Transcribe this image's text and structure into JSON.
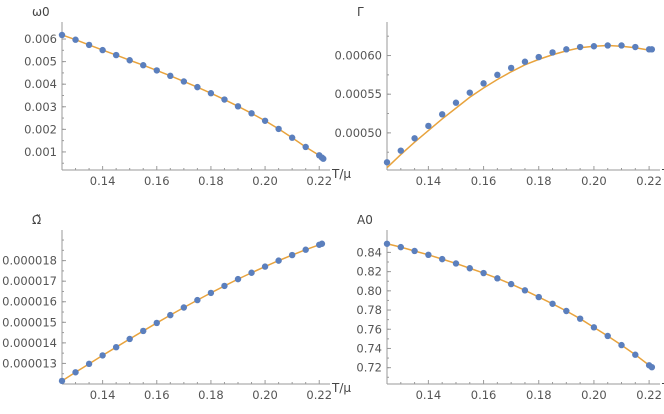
{
  "chart_data": [
    {
      "type": "scatter",
      "ylabel": "ω0",
      "xlabel": "T/μ",
      "xlim": [
        0.125,
        0.2225
      ],
      "ylim": [
        0.0002,
        0.0064
      ],
      "x_ticks": [
        "0.14",
        "0.16",
        "0.18",
        "0.20",
        "0.22"
      ],
      "y_ticks": [
        "0.001",
        "0.002",
        "0.003",
        "0.004",
        "0.005",
        "0.006"
      ],
      "series": [
        {
          "style": "points",
          "color": "#5b7fbd",
          "x": [
            0.125,
            0.13,
            0.135,
            0.14,
            0.145,
            0.15,
            0.155,
            0.16,
            0.165,
            0.17,
            0.175,
            0.18,
            0.185,
            0.19,
            0.195,
            0.2,
            0.205,
            0.21,
            0.215,
            0.22,
            0.221,
            0.2215
          ],
          "y": [
            0.00618,
            0.00597,
            0.00574,
            0.00551,
            0.00529,
            0.00506,
            0.00484,
            0.00461,
            0.00437,
            0.00412,
            0.00387,
            0.0036,
            0.00332,
            0.00302,
            0.00271,
            0.00238,
            0.00202,
            0.00163,
            0.00122,
            0.00085,
            0.00075,
            0.0007
          ]
        },
        {
          "style": "line",
          "color": "#e8a33d",
          "x": [
            0.125,
            0.13,
            0.135,
            0.14,
            0.145,
            0.15,
            0.155,
            0.16,
            0.165,
            0.17,
            0.175,
            0.18,
            0.185,
            0.19,
            0.195,
            0.2,
            0.205,
            0.21,
            0.215,
            0.22,
            0.221,
            0.2215
          ],
          "y": [
            0.00618,
            0.00597,
            0.00574,
            0.00551,
            0.00529,
            0.00506,
            0.00484,
            0.00461,
            0.00437,
            0.00412,
            0.00387,
            0.0036,
            0.00332,
            0.00302,
            0.00271,
            0.00238,
            0.00202,
            0.00163,
            0.00122,
            0.00085,
            0.00075,
            0.0007
          ]
        }
      ]
    },
    {
      "type": "scatter",
      "ylabel": "Γ",
      "xlabel": "T/μ",
      "xlim": [
        0.125,
        0.2225
      ],
      "ylim": [
        0.000452,
        0.000633
      ],
      "x_ticks": [
        "0.14",
        "0.16",
        "0.18",
        "0.20",
        "0.22"
      ],
      "y_ticks": [
        "0.00050",
        "0.00055",
        "0.00060"
      ],
      "series": [
        {
          "style": "points",
          "color": "#5b7fbd",
          "x": [
            0.125,
            0.13,
            0.135,
            0.14,
            0.145,
            0.15,
            0.155,
            0.16,
            0.165,
            0.17,
            0.175,
            0.18,
            0.185,
            0.19,
            0.195,
            0.2,
            0.205,
            0.21,
            0.215,
            0.22,
            0.221
          ],
          "y": [
            0.000462,
            0.000477,
            0.000493,
            0.000509,
            0.000524,
            0.000539,
            0.000552,
            0.000564,
            0.000575,
            0.000584,
            0.000592,
            0.000598,
            0.000604,
            0.000608,
            0.000611,
            0.000612,
            0.000613,
            0.000613,
            0.000611,
            0.000608,
            0.000608
          ]
        },
        {
          "style": "line",
          "color": "#e8a33d",
          "x": [
            0.125,
            0.13,
            0.135,
            0.14,
            0.145,
            0.15,
            0.155,
            0.16,
            0.165,
            0.17,
            0.175,
            0.18,
            0.185,
            0.19,
            0.195,
            0.2,
            0.205,
            0.21,
            0.215,
            0.22,
            0.221
          ],
          "y": [
            0.000455,
            0.000472,
            0.000488,
            0.000503,
            0.000518,
            0.000532,
            0.000546,
            0.000558,
            0.000569,
            0.000579,
            0.000588,
            0.000595,
            0.000601,
            0.000606,
            0.00061,
            0.000612,
            0.000613,
            0.000612,
            0.00061,
            0.000607,
            0.000606
          ]
        }
      ]
    },
    {
      "type": "scatter",
      "ylabel": "Ω̃",
      "xlabel": "T/μ",
      "xlim": [
        0.125,
        0.2225
      ],
      "ylim": [
        1.2e-05,
        1.91e-05
      ],
      "x_ticks": [
        "0.14",
        "0.16",
        "0.18",
        "0.20",
        "0.22"
      ],
      "y_ticks": [
        "0.000013",
        "0.000014",
        "0.000015",
        "0.000016",
        "0.000017",
        "0.000018"
      ],
      "series": [
        {
          "style": "points",
          "color": "#5b7fbd",
          "x": [
            0.125,
            0.13,
            0.135,
            0.14,
            0.145,
            0.15,
            0.155,
            0.16,
            0.165,
            0.17,
            0.175,
            0.18,
            0.185,
            0.19,
            0.195,
            0.2,
            0.205,
            0.21,
            0.215,
            0.22,
            0.221
          ],
          "y": [
            1.215e-05,
            1.257e-05,
            1.298e-05,
            1.339e-05,
            1.379e-05,
            1.419e-05,
            1.458e-05,
            1.497e-05,
            1.535e-05,
            1.572e-05,
            1.608e-05,
            1.643e-05,
            1.677e-05,
            1.71e-05,
            1.741e-05,
            1.771e-05,
            1.8e-05,
            1.827e-05,
            1.853e-05,
            1.877e-05,
            1.882e-05
          ]
        },
        {
          "style": "line",
          "color": "#e8a33d",
          "x": [
            0.125,
            0.13,
            0.135,
            0.14,
            0.145,
            0.15,
            0.155,
            0.16,
            0.165,
            0.17,
            0.175,
            0.18,
            0.185,
            0.19,
            0.195,
            0.2,
            0.205,
            0.21,
            0.215,
            0.22,
            0.221
          ],
          "y": [
            1.215e-05,
            1.257e-05,
            1.298e-05,
            1.339e-05,
            1.379e-05,
            1.419e-05,
            1.458e-05,
            1.497e-05,
            1.535e-05,
            1.572e-05,
            1.608e-05,
            1.643e-05,
            1.677e-05,
            1.71e-05,
            1.741e-05,
            1.771e-05,
            1.8e-05,
            1.827e-05,
            1.853e-05,
            1.877e-05,
            1.882e-05
          ]
        }
      ]
    },
    {
      "type": "scatter",
      "ylabel": "A0",
      "xlabel": "T/μ",
      "xlim": [
        0.125,
        0.2225
      ],
      "ylim": [
        0.703,
        0.855
      ],
      "x_ticks": [
        "0.14",
        "0.16",
        "0.18",
        "0.20",
        "0.22"
      ],
      "y_ticks": [
        "0.72",
        "0.74",
        "0.76",
        "0.78",
        "0.80",
        "0.82",
        "0.84"
      ],
      "series": [
        {
          "style": "points",
          "color": "#5b7fbd",
          "x": [
            0.125,
            0.13,
            0.135,
            0.14,
            0.145,
            0.15,
            0.155,
            0.16,
            0.165,
            0.17,
            0.175,
            0.18,
            0.185,
            0.19,
            0.195,
            0.2,
            0.205,
            0.21,
            0.215,
            0.22,
            0.221
          ],
          "y": [
            0.849,
            0.8455,
            0.8415,
            0.8375,
            0.833,
            0.8285,
            0.8235,
            0.8185,
            0.813,
            0.807,
            0.8005,
            0.7935,
            0.7865,
            0.779,
            0.771,
            0.762,
            0.753,
            0.7435,
            0.7335,
            0.7225,
            0.7205
          ]
        },
        {
          "style": "line",
          "color": "#e8a33d",
          "x": [
            0.125,
            0.13,
            0.135,
            0.14,
            0.145,
            0.15,
            0.155,
            0.16,
            0.165,
            0.17,
            0.175,
            0.18,
            0.185,
            0.19,
            0.195,
            0.2,
            0.205,
            0.21,
            0.215,
            0.22,
            0.221
          ],
          "y": [
            0.849,
            0.8455,
            0.8415,
            0.8375,
            0.833,
            0.8285,
            0.8235,
            0.8185,
            0.813,
            0.807,
            0.8005,
            0.7935,
            0.7865,
            0.779,
            0.771,
            0.762,
            0.753,
            0.7435,
            0.7335,
            0.7225,
            0.7205
          ]
        }
      ]
    }
  ]
}
